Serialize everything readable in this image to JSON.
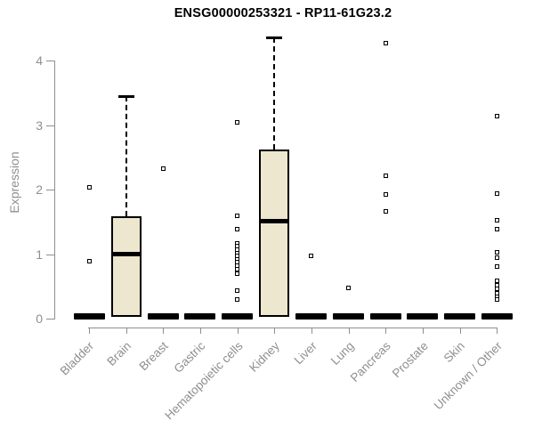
{
  "chart_data": {
    "type": "boxplot",
    "title": "ENSG00000253321 - RP11-61G23.2",
    "ylabel": "Expression",
    "xlabel": "",
    "ylim": [
      0,
      4.4
    ],
    "yticks": [
      0,
      1,
      2,
      3,
      4
    ],
    "grid": false,
    "legend": "none",
    "categories": [
      "Bladder",
      "Brain",
      "Breast",
      "Gastric",
      "Hematopoietic cells",
      "Kidney",
      "Liver",
      "Lung",
      "Pancreas",
      "Prostate",
      "Skin",
      "Unknown / Other"
    ],
    "boxes": [
      {
        "category": "Bladder",
        "q1": 0,
        "median": 0,
        "q3": 0,
        "whisker_low": 0,
        "whisker_high": 0,
        "outliers": [
          2.03,
          0.89
        ]
      },
      {
        "category": "Brain",
        "q1": 0,
        "median": 1.0,
        "q3": 1.58,
        "whisker_low": 0,
        "whisker_high": 3.45,
        "outliers": []
      },
      {
        "category": "Breast",
        "q1": 0,
        "median": 0,
        "q3": 0,
        "whisker_low": 0,
        "whisker_high": 0,
        "outliers": [
          2.33
        ]
      },
      {
        "category": "Gastric",
        "q1": 0,
        "median": 0,
        "q3": 0,
        "whisker_low": 0,
        "whisker_high": 0,
        "outliers": []
      },
      {
        "category": "Hematopoietic cells",
        "q1": 0,
        "median": 0,
        "q3": 0,
        "whisker_low": 0,
        "whisker_high": 0,
        "outliers": [
          3.04,
          1.59,
          1.38,
          1.17,
          1.12,
          1.07,
          1.02,
          0.97,
          0.92,
          0.87,
          0.82,
          0.77,
          0.7,
          0.43,
          0.29
        ]
      },
      {
        "category": "Kidney",
        "q1": 0,
        "median": 1.51,
        "q3": 2.62,
        "whisker_low": 0,
        "whisker_high": 4.36,
        "outliers": []
      },
      {
        "category": "Liver",
        "q1": 0,
        "median": 0,
        "q3": 0,
        "whisker_low": 0,
        "whisker_high": 0,
        "outliers": [
          0.97
        ]
      },
      {
        "category": "Lung",
        "q1": 0,
        "median": 0,
        "q3": 0,
        "whisker_low": 0,
        "whisker_high": 0,
        "outliers": [
          0.48
        ]
      },
      {
        "category": "Pancreas",
        "q1": 0,
        "median": 0,
        "q3": 0,
        "whisker_low": 0,
        "whisker_high": 0,
        "outliers": [
          4.27,
          2.21,
          1.92,
          1.66
        ]
      },
      {
        "category": "Prostate",
        "q1": 0,
        "median": 0,
        "q3": 0,
        "whisker_low": 0,
        "whisker_high": 0,
        "outliers": []
      },
      {
        "category": "Skin",
        "q1": 0,
        "median": 0,
        "q3": 0,
        "whisker_low": 0,
        "whisker_high": 0,
        "outliers": []
      },
      {
        "category": "Unknown / Other",
        "q1": 0,
        "median": 0,
        "q3": 0,
        "whisker_low": 0,
        "whisker_high": 0,
        "outliers": [
          3.14,
          1.94,
          1.53,
          1.38,
          1.03,
          0.94,
          0.81,
          0.59,
          0.52,
          0.46,
          0.4,
          0.34,
          0.29
        ]
      }
    ],
    "colors": {
      "box_fill": "#ece7ce",
      "box_border": "#000000",
      "median": "#000000",
      "outlier": "#000000",
      "axis": "#8f8f8f",
      "title": "#000000",
      "background": "#ffffff"
    }
  }
}
